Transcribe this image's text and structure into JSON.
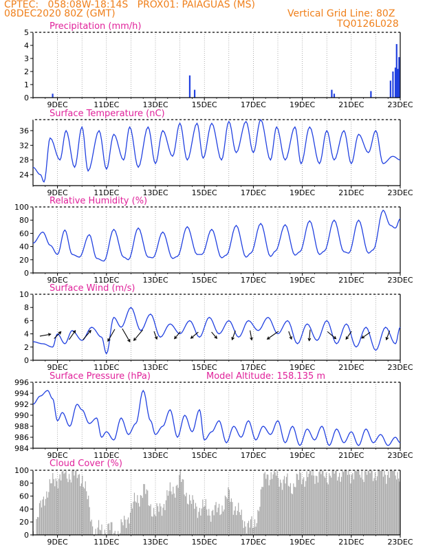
{
  "header": {
    "line1": "CPTEC:   058:08W-18:14S   PROX01: PAIAGUAS (MS)",
    "line2_left": "08DEC2020 80Z (GMT)",
    "line2_right": "Vertical Grid Line: 80Z",
    "line3_right": "TQ0126L028"
  },
  "colors": {
    "header": "#ef7f1a",
    "title": "#e0219a",
    "line": "#2040e0",
    "cloud": "#a8a8a8"
  },
  "x_axis": {
    "labels": [
      "9DEC",
      "11DEC",
      "13DEC",
      "15DEC",
      "17DEC",
      "19DEC",
      "21DEC",
      "23DEC"
    ],
    "start_day": 8.0,
    "end_day": 23.0,
    "vertical_grid_days": [
      9,
      10,
      11,
      12,
      13,
      14,
      15,
      16,
      17,
      18,
      19,
      20,
      21,
      22
    ]
  },
  "chart_data": [
    {
      "type": "bar",
      "title": "Precipitation (mm/h)",
      "ylim": [
        0,
        5
      ],
      "yticks": [
        "0",
        "1",
        "2",
        "3",
        "4",
        "5"
      ],
      "x_days": [
        8.8,
        14.4,
        14.6,
        20.2,
        20.3,
        21.8,
        22.6,
        22.7,
        22.8,
        22.85,
        22.9,
        22.95
      ],
      "values": [
        0.3,
        1.7,
        0.6,
        0.6,
        0.3,
        0.5,
        1.3,
        2.0,
        2.3,
        4.1,
        2.2,
        3.1
      ]
    },
    {
      "type": "line",
      "title": "Surface Temperature (nC)",
      "ylim": [
        21,
        39
      ],
      "yticks": [
        "24",
        "28",
        "32",
        "36"
      ],
      "x_days": [
        8.0,
        8.3,
        8.45,
        8.7,
        9.1,
        9.35,
        9.7,
        10.0,
        10.25,
        10.7,
        11.0,
        11.3,
        11.7,
        11.95,
        12.3,
        12.7,
        13.0,
        13.3,
        13.7,
        14.0,
        14.3,
        14.7,
        14.95,
        15.3,
        15.7,
        16.0,
        16.3,
        16.7,
        17.0,
        17.3,
        17.7,
        17.95,
        18.3,
        18.7,
        18.95,
        19.3,
        19.7,
        20.0,
        20.3,
        20.7,
        21.0,
        21.3,
        21.7,
        22.0,
        22.3,
        22.7,
        23.0
      ],
      "values": [
        26,
        24,
        22,
        34,
        28,
        36,
        26,
        37,
        25,
        36,
        25.5,
        35,
        28,
        37,
        26,
        37,
        27,
        36,
        29,
        38,
        28,
        38,
        28.5,
        38,
        28,
        38.5,
        30,
        38.5,
        30,
        39,
        28,
        37,
        28,
        37,
        27,
        37,
        27,
        36,
        28,
        36,
        27,
        35,
        30,
        36,
        27,
        29,
        28
      ]
    },
    {
      "type": "line",
      "title": "Relative Humidity (%)",
      "ylim": [
        0,
        100
      ],
      "yticks": [
        "0",
        "20",
        "40",
        "60",
        "80",
        "100"
      ],
      "x_days": [
        8.0,
        8.4,
        8.7,
        9.0,
        9.3,
        9.6,
        9.9,
        10.3,
        10.6,
        10.9,
        11.3,
        11.7,
        11.9,
        12.3,
        12.7,
        12.9,
        13.3,
        13.7,
        13.9,
        14.3,
        14.7,
        14.9,
        15.3,
        15.7,
        15.9,
        16.3,
        16.7,
        16.9,
        17.3,
        17.7,
        17.9,
        18.3,
        18.7,
        18.9,
        19.3,
        19.7,
        19.9,
        20.3,
        20.7,
        20.9,
        21.3,
        21.7,
        21.9,
        22.3,
        22.6,
        22.8,
        23.0
      ],
      "values": [
        45,
        62,
        42,
        28,
        65,
        28,
        24,
        58,
        22,
        18,
        66,
        24,
        20,
        68,
        24,
        23,
        62,
        22,
        25,
        70,
        28,
        28,
        66,
        23,
        27,
        72,
        24,
        30,
        75,
        25,
        33,
        73,
        27,
        32,
        79,
        28,
        33,
        80,
        32,
        30,
        80,
        30,
        35,
        95,
        72,
        68,
        82
      ]
    },
    {
      "type": "line",
      "title": "Surface Wind (m/s)",
      "ylim": [
        0,
        10
      ],
      "yticks": [
        "0",
        "2",
        "4",
        "6",
        "8",
        "10"
      ],
      "x_days": [
        8.0,
        8.4,
        8.8,
        9.0,
        9.3,
        9.6,
        10.0,
        10.4,
        10.8,
        11.0,
        11.3,
        11.6,
        12.0,
        12.4,
        12.8,
        13.2,
        13.6,
        14.0,
        14.4,
        14.8,
        15.2,
        15.6,
        16.0,
        16.4,
        16.8,
        17.2,
        17.6,
        18.0,
        18.4,
        18.8,
        19.2,
        19.6,
        20.0,
        20.4,
        20.8,
        21.2,
        21.6,
        22.0,
        22.4,
        22.8,
        23.0
      ],
      "values": [
        2.8,
        2.5,
        2.0,
        4.0,
        2.5,
        4.5,
        3.0,
        5.0,
        3.5,
        1.0,
        6.5,
        5.0,
        8.0,
        4.5,
        7.0,
        3.5,
        5.5,
        4.0,
        6.0,
        3.5,
        6.5,
        4.0,
        6.0,
        3.5,
        6.0,
        4.5,
        6.5,
        4.0,
        6.0,
        2.5,
        5.5,
        3.0,
        6.0,
        2.5,
        5.5,
        2.0,
        5.0,
        1.5,
        5.0,
        2.5,
        5.0
      ],
      "arrows": [
        {
          "day": 8.5,
          "speed": 2.5,
          "dir_deg": 80
        },
        {
          "day": 9.0,
          "speed": 2.0,
          "dir_deg": 45
        },
        {
          "day": 9.6,
          "speed": 2.5,
          "dir_deg": 35
        },
        {
          "day": 10.2,
          "speed": 3.0,
          "dir_deg": 40
        },
        {
          "day": 11.2,
          "speed": 3.5,
          "dir_deg": 210
        },
        {
          "day": 11.8,
          "speed": 4.0,
          "dir_deg": 150
        },
        {
          "day": 12.3,
          "speed": 3.5,
          "dir_deg": 220
        },
        {
          "day": 13.0,
          "speed": 1.5,
          "dir_deg": 160
        },
        {
          "day": 13.9,
          "speed": 1.8,
          "dir_deg": 220
        },
        {
          "day": 14.6,
          "speed": 2.0,
          "dir_deg": 230
        },
        {
          "day": 15.4,
          "speed": 1.5,
          "dir_deg": 140
        },
        {
          "day": 16.2,
          "speed": 2.0,
          "dir_deg": 200
        },
        {
          "day": 16.9,
          "speed": 2.0,
          "dir_deg": 170
        },
        {
          "day": 17.8,
          "speed": 3.5,
          "dir_deg": 235
        },
        {
          "day": 18.5,
          "speed": 1.5,
          "dir_deg": 160
        },
        {
          "day": 19.3,
          "speed": 2.5,
          "dir_deg": 185
        },
        {
          "day": 20.2,
          "speed": 2.5,
          "dir_deg": 130
        },
        {
          "day": 20.9,
          "speed": 2.0,
          "dir_deg": 215
        },
        {
          "day": 21.6,
          "speed": 2.2,
          "dir_deg": 235
        },
        {
          "day": 22.5,
          "speed": 2.0,
          "dir_deg": 200
        }
      ]
    },
    {
      "type": "line",
      "title": "Surface Pressure (hPa)",
      "subtitle": "Model Altitude: 158.135 m",
      "ylim": [
        984,
        996
      ],
      "yticks": [
        "984",
        "986",
        "988",
        "990",
        "992",
        "994",
        "996"
      ],
      "x_days": [
        8.0,
        8.3,
        8.6,
        8.8,
        9.0,
        9.2,
        9.5,
        9.8,
        10.0,
        10.3,
        10.6,
        10.8,
        11.0,
        11.3,
        11.6,
        11.9,
        12.2,
        12.5,
        12.8,
        13.0,
        13.3,
        13.6,
        13.9,
        14.2,
        14.5,
        14.8,
        15.0,
        15.3,
        15.6,
        15.9,
        16.2,
        16.5,
        16.8,
        17.1,
        17.4,
        17.7,
        18.0,
        18.3,
        18.6,
        18.9,
        19.2,
        19.5,
        19.8,
        20.1,
        20.4,
        20.7,
        21.0,
        21.3,
        21.6,
        21.9,
        22.2,
        22.5,
        22.8,
        23.0
      ],
      "values": [
        992,
        993.5,
        994.5,
        993,
        989,
        990.5,
        988,
        992,
        991,
        988.5,
        989.5,
        986,
        987,
        985.5,
        989.5,
        986.5,
        988.5,
        994.5,
        989,
        986.5,
        988,
        991,
        986,
        990,
        987,
        991,
        985.5,
        987,
        989,
        985,
        988,
        986,
        989,
        985.5,
        988,
        986.5,
        989,
        985,
        988,
        984.5,
        987.5,
        985.5,
        988,
        984.5,
        987.5,
        985,
        987,
        984.5,
        987.5,
        985,
        986.5,
        984.5,
        986,
        985
      ]
    },
    {
      "type": "bar",
      "title": "Cloud Cover (%)",
      "ylim": [
        0,
        100
      ],
      "yticks": [
        "0",
        "20",
        "40",
        "60",
        "80",
        "100"
      ],
      "x_days": [
        8.0,
        8.5,
        9.0,
        9.5,
        10.0,
        10.5,
        11.0,
        11.5,
        12.0,
        12.5,
        13.0,
        13.5,
        14.0,
        14.5,
        15.0,
        15.5,
        16.0,
        16.5,
        17.0,
        17.5,
        18.0,
        18.5,
        19.0,
        19.5,
        20.0,
        20.5,
        21.0,
        21.5,
        22.0,
        22.5,
        23.0
      ],
      "values": [
        5,
        65,
        90,
        95,
        90,
        3,
        10,
        2,
        40,
        70,
        30,
        60,
        85,
        45,
        40,
        35,
        60,
        25,
        10,
        95,
        90,
        75,
        90,
        95,
        93,
        97,
        97,
        97,
        97,
        97,
        97
      ]
    }
  ]
}
